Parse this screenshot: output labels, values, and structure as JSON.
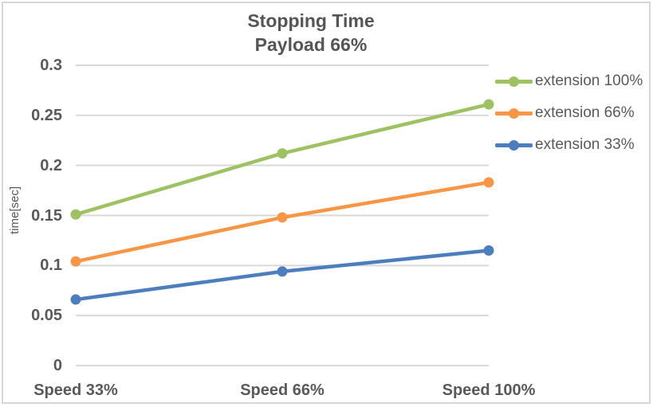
{
  "chart": {
    "title_line1": "Stopping Time",
    "title_line2": "Payload 66%",
    "ylabel": "time[sec]"
  },
  "chart_data": {
    "type": "line",
    "title": "Stopping Time\nPayload 66%",
    "xlabel": "",
    "ylabel": "time[sec]",
    "categories": [
      "Speed 33%",
      "Speed 66%",
      "Speed 100%"
    ],
    "series": [
      {
        "name": "extension 100%",
        "color": "#9EC164",
        "values": [
          0.151,
          0.212,
          0.261
        ]
      },
      {
        "name": "extension 66%",
        "color": "#F79646",
        "values": [
          0.104,
          0.148,
          0.183
        ]
      },
      {
        "name": "extension 33%",
        "color": "#4C7EBD",
        "values": [
          0.066,
          0.094,
          0.115
        ]
      }
    ],
    "ylim": [
      0,
      0.3
    ],
    "ytick_labels": [
      "0",
      "0.05",
      "0.1",
      "0.15",
      "0.2",
      "0.25",
      "0.3"
    ],
    "ytick_values": [
      0,
      0.05,
      0.1,
      0.15,
      0.2,
      0.25,
      0.3
    ],
    "grid": true,
    "legend_position": "right",
    "marker": "circle",
    "colors": {
      "gridline": "#D9D9D9",
      "axis_text": "#595959",
      "title_text": "#555555",
      "chart_border": "#D6D6D6",
      "background": "#FFFFFF"
    }
  }
}
